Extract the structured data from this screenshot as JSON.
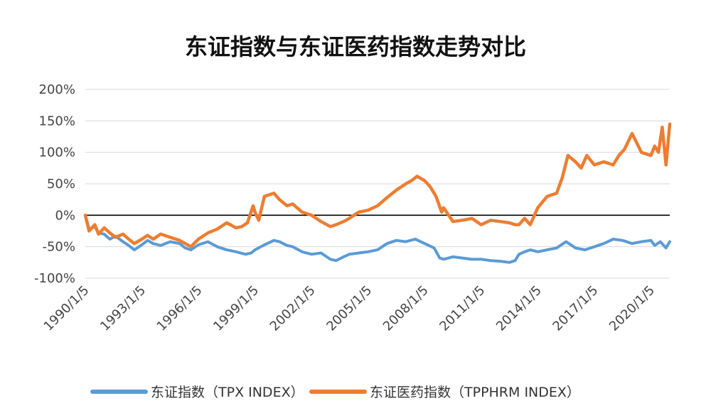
{
  "chart_data": {
    "type": "line",
    "title": "东证指数与东证医药指数走势对比",
    "xlabel": "",
    "ylabel": "",
    "ylim": [
      -100,
      200
    ],
    "yunit": "%",
    "yticks": [
      "200%",
      "150%",
      "100%",
      "50%",
      "0%",
      "-50%",
      "-100%"
    ],
    "ytick_values": [
      200,
      150,
      100,
      50,
      0,
      -50,
      -100
    ],
    "xlim": [
      1990.0,
      2021.0
    ],
    "xticks": [
      "1990/1/5",
      "1993/1/5",
      "1996/1/5",
      "1999/1/5",
      "2002/1/5",
      "2005/1/5",
      "2008/1/5",
      "2011/1/5",
      "2014/1/5",
      "2017/1/5",
      "2020/1/5"
    ],
    "xtick_values": [
      1990.0,
      1993.0,
      1996.0,
      1999.0,
      2002.0,
      2005.0,
      2008.0,
      2011.0,
      2014.0,
      2017.0,
      2020.0
    ],
    "grid": true,
    "legend_position": "bottom",
    "series": [
      {
        "name": "东证指数（TPX INDEX）",
        "color": "#5B9BD5",
        "x": [
          1990.0,
          1990.2,
          1990.5,
          1990.7,
          1991.0,
          1991.3,
          1991.6,
          1992.0,
          1992.3,
          1992.6,
          1993.0,
          1993.3,
          1993.6,
          1994.0,
          1994.5,
          1995.0,
          1995.3,
          1995.6,
          1996.0,
          1996.5,
          1997.0,
          1997.5,
          1998.0,
          1998.5,
          1998.8,
          1999.0,
          1999.5,
          2000.0,
          2000.3,
          2000.7,
          2001.0,
          2001.5,
          2002.0,
          2002.5,
          2003.0,
          2003.3,
          2003.7,
          2004.0,
          2004.5,
          2005.0,
          2005.5,
          2006.0,
          2006.5,
          2007.0,
          2007.5,
          2008.0,
          2008.5,
          2008.8,
          2009.0,
          2009.5,
          2010.0,
          2010.5,
          2011.0,
          2011.5,
          2012.0,
          2012.5,
          2012.8,
          2013.0,
          2013.3,
          2013.6,
          2014.0,
          2014.5,
          2015.0,
          2015.5,
          2016.0,
          2016.5,
          2017.0,
          2017.5,
          2018.0,
          2018.5,
          2019.0,
          2019.5,
          2020.0,
          2020.2,
          2020.5,
          2020.8,
          2021.0
        ],
        "values": [
          0,
          -22,
          -18,
          -28,
          -30,
          -38,
          -33,
          -42,
          -48,
          -55,
          -47,
          -40,
          -45,
          -48,
          -42,
          -45,
          -52,
          -55,
          -47,
          -42,
          -50,
          -55,
          -58,
          -62,
          -60,
          -55,
          -47,
          -40,
          -42,
          -48,
          -50,
          -58,
          -62,
          -60,
          -70,
          -72,
          -66,
          -62,
          -60,
          -58,
          -55,
          -45,
          -40,
          -42,
          -38,
          -45,
          -52,
          -68,
          -70,
          -66,
          -68,
          -70,
          -70,
          -72,
          -73,
          -75,
          -72,
          -62,
          -58,
          -55,
          -58,
          -55,
          -52,
          -42,
          -52,
          -55,
          -50,
          -45,
          -38,
          -40,
          -45,
          -42,
          -40,
          -48,
          -42,
          -52,
          -42
        ]
      },
      {
        "name": "东证医药指数（TPPHRM INDEX）",
        "color": "#ED7D31",
        "x": [
          1990.0,
          1990.2,
          1990.5,
          1990.7,
          1991.0,
          1991.3,
          1991.6,
          1992.0,
          1992.3,
          1992.6,
          1993.0,
          1993.3,
          1993.6,
          1994.0,
          1994.5,
          1995.0,
          1995.3,
          1995.6,
          1996.0,
          1996.5,
          1997.0,
          1997.5,
          1998.0,
          1998.3,
          1998.6,
          1998.9,
          1999.0,
          1999.2,
          1999.5,
          2000.0,
          2000.3,
          2000.7,
          2001.0,
          2001.5,
          2002.0,
          2002.5,
          2003.0,
          2003.3,
          2003.7,
          2004.0,
          2004.5,
          2005.0,
          2005.5,
          2006.0,
          2006.5,
          2007.0,
          2007.3,
          2007.6,
          2008.0,
          2008.3,
          2008.6,
          2008.9,
          2009.0,
          2009.5,
          2010.0,
          2010.5,
          2011.0,
          2011.5,
          2012.0,
          2012.5,
          2012.8,
          2013.0,
          2013.3,
          2013.6,
          2014.0,
          2014.5,
          2015.0,
          2015.3,
          2015.6,
          2016.0,
          2016.3,
          2016.6,
          2017.0,
          2017.5,
          2018.0,
          2018.3,
          2018.6,
          2019.0,
          2019.5,
          2020.0,
          2020.2,
          2020.4,
          2020.6,
          2020.8,
          2021.0
        ],
        "values": [
          0,
          -25,
          -15,
          -30,
          -20,
          -28,
          -35,
          -30,
          -38,
          -45,
          -38,
          -32,
          -38,
          -30,
          -35,
          -40,
          -45,
          -50,
          -38,
          -28,
          -22,
          -12,
          -20,
          -18,
          -12,
          15,
          5,
          -8,
          30,
          35,
          25,
          15,
          18,
          5,
          0,
          -10,
          -18,
          -15,
          -10,
          -5,
          5,
          8,
          15,
          28,
          40,
          50,
          55,
          62,
          55,
          45,
          30,
          5,
          12,
          -10,
          -8,
          -5,
          -15,
          -8,
          -10,
          -12,
          -15,
          -15,
          -5,
          -15,
          12,
          30,
          35,
          60,
          95,
          85,
          75,
          95,
          80,
          85,
          80,
          95,
          105,
          130,
          100,
          95,
          110,
          100,
          140,
          80,
          145
        ]
      }
    ]
  }
}
